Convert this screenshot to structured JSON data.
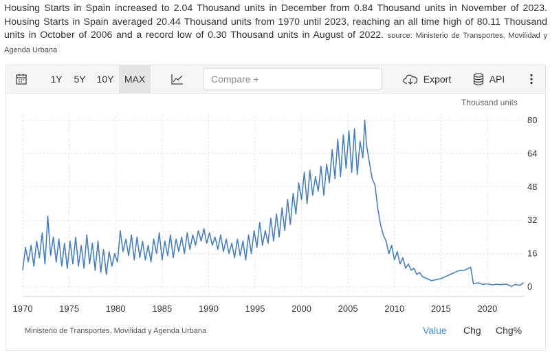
{
  "description": {
    "text": "Housing Starts in Spain increased to 2.04 Thousand units in December from 0.84 Thousand units in November of 2023. Housing Starts in Spain averaged 20.44 Thousand units from 1970 until 2023, reaching an all time high of 80.11 Thousand units in October of 2006 and a record low of 0.30 Thousand units in August of 2022.",
    "source_label": "source: Ministerio de Transportes, Movilidad y Agenda Urbana"
  },
  "toolbar": {
    "ranges": [
      "1Y",
      "5Y",
      "10Y",
      "MAX"
    ],
    "active_range": "MAX",
    "compare_placeholder": "Compare +",
    "export_label": "Export",
    "api_label": "API"
  },
  "footer": {
    "source": "Ministerio de Transportes, Movilidad y Agenda Urbana",
    "tabs": [
      "Value",
      "Chg",
      "Chg%"
    ],
    "active_tab": "Value"
  },
  "colors": {
    "line": "#4a7ebb",
    "grid": "#dddddd",
    "active_tab": "#4a90c8"
  },
  "chart_data": {
    "type": "line",
    "unit_label": "Thousand units",
    "x_ticks": [
      1970,
      1975,
      1980,
      1985,
      1990,
      1995,
      2000,
      2005,
      2010,
      2015,
      2020
    ],
    "y_ticks": [
      0,
      16,
      32,
      48,
      64,
      80
    ],
    "xlim": [
      1970,
      2024
    ],
    "ylim": [
      0,
      80
    ],
    "grid": true,
    "y_axis_side": "right",
    "series": [
      {
        "x": [
          1970,
          1970.3,
          1970.6,
          1970.9,
          1971.2,
          1971.5,
          1971.8,
          1972.1,
          1972.4,
          1972.7,
          1973.0,
          1973.3,
          1973.6,
          1973.9,
          1974.2,
          1974.5,
          1974.8,
          1975.1,
          1975.4,
          1975.7,
          1976.0,
          1976.3,
          1976.6,
          1976.9,
          1977.2,
          1977.5,
          1977.8,
          1978.1,
          1978.4,
          1978.7,
          1979.0,
          1979.3,
          1979.6,
          1979.9,
          1980.2,
          1980.5,
          1980.8,
          1981.1,
          1981.4,
          1981.7,
          1982.0,
          1982.3,
          1982.6,
          1982.9,
          1983.2,
          1983.5,
          1983.8,
          1984.1,
          1984.4,
          1984.7,
          1985.0,
          1985.3,
          1985.6,
          1985.9,
          1986.2,
          1986.5,
          1986.8,
          1987.1,
          1987.4,
          1987.7,
          1988.0,
          1988.3,
          1988.6,
          1988.9,
          1989.2,
          1989.5,
          1989.8,
          1990.1,
          1990.4,
          1990.7,
          1991.0,
          1991.3,
          1991.6,
          1991.9,
          1992.2,
          1992.5,
          1992.8,
          1993.1,
          1993.4,
          1993.7,
          1994.0,
          1994.3,
          1994.6,
          1994.9,
          1995.2,
          1995.5,
          1995.8,
          1996.1,
          1996.4,
          1996.7,
          1997.0,
          1997.3,
          1997.6,
          1997.9,
          1998.2,
          1998.5,
          1998.8,
          1999.1,
          1999.4,
          1999.7,
          2000.0,
          2000.3,
          2000.6,
          2000.9,
          2001.2,
          2001.5,
          2001.8,
          2002.1,
          2002.4,
          2002.7,
          2003.0,
          2003.3,
          2003.6,
          2003.9,
          2004.2,
          2004.5,
          2004.8,
          2005.1,
          2005.4,
          2005.7,
          2006.0,
          2006.3,
          2006.6,
          2006.8,
          2007.0,
          2007.3,
          2007.6,
          2007.9,
          2008.2,
          2008.5,
          2008.8,
          2009.1,
          2009.4,
          2009.7,
          2010.0,
          2010.3,
          2010.6,
          2010.9,
          2011.2,
          2011.5,
          2011.8,
          2012.1,
          2012.4,
          2012.7,
          2013.0,
          2013.5,
          2014.0,
          2014.5,
          2015.0,
          2015.5,
          2016.0,
          2016.5,
          2017.0,
          2017.5,
          2018.0,
          2018.2,
          2018.5,
          2019.0,
          2019.5,
          2020.0,
          2020.5,
          2021.0,
          2021.5,
          2022.0,
          2022.6,
          2023.0,
          2023.5,
          2023.9
        ],
        "y": [
          8,
          19,
          12,
          20,
          10,
          22,
          14,
          26,
          11,
          34,
          15,
          24,
          12,
          23,
          10,
          21,
          9,
          22,
          11,
          24,
          10,
          20,
          9,
          25,
          11,
          21,
          8,
          22,
          7,
          18,
          6,
          17,
          10,
          16,
          12,
          27,
          17,
          23,
          15,
          25,
          13,
          24,
          14,
          22,
          13,
          20,
          12,
          23,
          16,
          26,
          13,
          22,
          15,
          25,
          14,
          23,
          17,
          24,
          16,
          26,
          18,
          25,
          20,
          27,
          22,
          28,
          21,
          26,
          20,
          24,
          18,
          25,
          17,
          23,
          16,
          21,
          14,
          23,
          15,
          22,
          13,
          25,
          16,
          27,
          19,
          31,
          20,
          27,
          21,
          33,
          22,
          35,
          24,
          38,
          27,
          42,
          30,
          45,
          35,
          50,
          42,
          55,
          40,
          56,
          44,
          53,
          46,
          58,
          44,
          59,
          50,
          66,
          52,
          71,
          53,
          73,
          57,
          75,
          55,
          76,
          54,
          70,
          62,
          80.11,
          68,
          60,
          52,
          49,
          38,
          30,
          25,
          22,
          16,
          20,
          13,
          17,
          11,
          14,
          9,
          11,
          8,
          9,
          6,
          7,
          5,
          4,
          3,
          3.5,
          4,
          5,
          6,
          7,
          8,
          8,
          9,
          9.5,
          1.5,
          2,
          1.2,
          1.5,
          1.0,
          1.3,
          1.1,
          1.4,
          0.3,
          1.2,
          0.8,
          2.04
        ]
      }
    ]
  }
}
